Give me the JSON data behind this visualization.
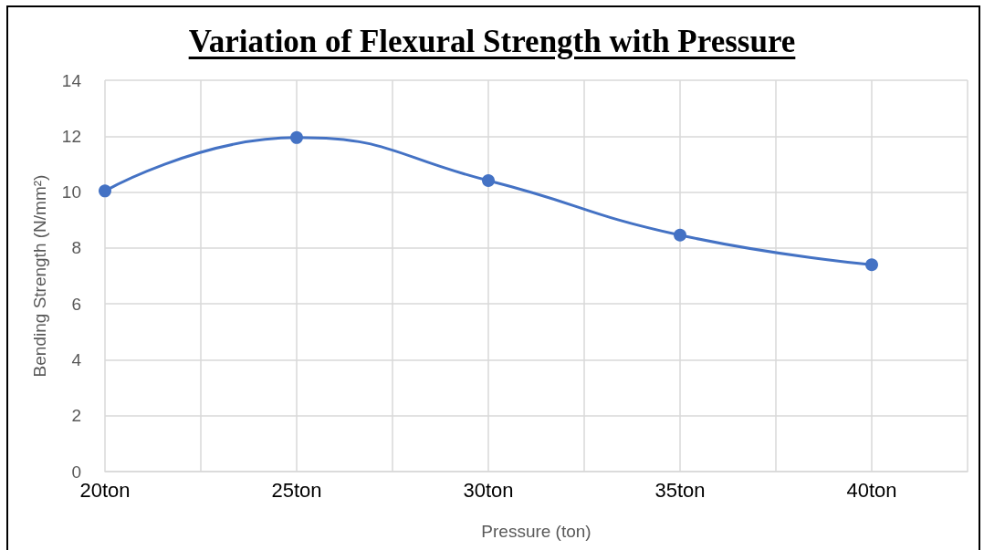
{
  "chart_data": {
    "type": "line",
    "title": "Variation of Flexural Strength with Pressure",
    "xlabel": "Pressure (ton)",
    "ylabel": "Bending Strength (N/mm²)",
    "x": [
      20,
      25,
      30,
      35,
      40
    ],
    "series": [
      {
        "color": "#4472c4",
        "values": [
          10.04,
          11.95,
          10.41,
          8.46,
          7.4
        ]
      }
    ],
    "xlim": [
      20,
      42.5
    ],
    "xticks": [
      {
        "value": 20,
        "label": "20ton"
      },
      {
        "value": 22.5,
        "label": null
      },
      {
        "value": 25,
        "label": "25ton"
      },
      {
        "value": 27.5,
        "label": null
      },
      {
        "value": 30,
        "label": "30ton"
      },
      {
        "value": 32.5,
        "label": null
      },
      {
        "value": 35,
        "label": "35ton"
      },
      {
        "value": 37.5,
        "label": null
      },
      {
        "value": 40,
        "label": "40ton"
      },
      {
        "value": 42.5,
        "label": null
      }
    ],
    "ylim": [
      0,
      14
    ],
    "yticks": [
      0,
      2,
      4,
      6,
      8,
      10,
      12,
      14
    ],
    "grid": true,
    "marker": "circle",
    "line_style": "solid"
  }
}
